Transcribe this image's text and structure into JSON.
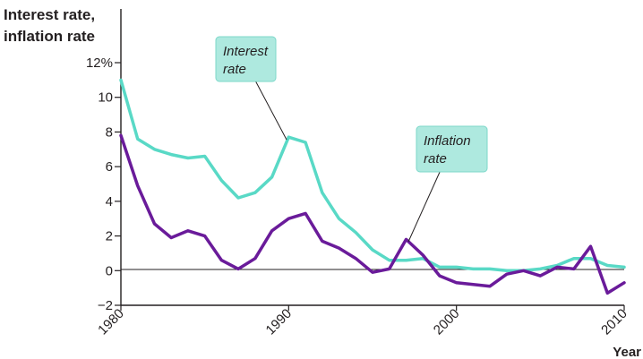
{
  "chart_data": {
    "type": "line",
    "ylabel": [
      "Interest rate,",
      "inflation rate"
    ],
    "xlabel": "Year",
    "xlim": [
      1980,
      2010
    ],
    "ylim": [
      -2,
      12
    ],
    "y_ticks": [
      -2,
      0,
      2,
      4,
      6,
      8,
      10,
      12
    ],
    "y_tick_labels": [
      "−2",
      "0",
      "2",
      "4",
      "6",
      "8",
      "10",
      "12%"
    ],
    "x_ticks": [
      1980,
      1990,
      2000,
      2010
    ],
    "x_tick_labels": [
      "1980",
      "1990",
      "2000",
      "2010"
    ],
    "grid": false,
    "series": [
      {
        "name": "Interest rate",
        "color": "#59d9c6",
        "x": [
          1980,
          1981,
          1982,
          1983,
          1984,
          1985,
          1986,
          1987,
          1988,
          1989,
          1990,
          1991,
          1992,
          1993,
          1994,
          1995,
          1996,
          1997,
          1998,
          1999,
          2000,
          2001,
          2002,
          2003,
          2004,
          2005,
          2006,
          2007,
          2008,
          2009,
          2010
        ],
        "y": [
          11.0,
          7.6,
          7.0,
          6.7,
          6.5,
          6.6,
          5.2,
          4.2,
          4.5,
          5.4,
          7.7,
          7.4,
          4.5,
          3.0,
          2.2,
          1.2,
          0.6,
          0.6,
          0.7,
          0.2,
          0.2,
          0.1,
          0.1,
          0.0,
          0.0,
          0.1,
          0.3,
          0.7,
          0.7,
          0.3,
          0.2
        ]
      },
      {
        "name": "Inflation rate",
        "color": "#6a1b9a",
        "x": [
          1980,
          1981,
          1982,
          1983,
          1984,
          1985,
          1986,
          1987,
          1988,
          1989,
          1990,
          1991,
          1992,
          1993,
          1994,
          1995,
          1996,
          1997,
          1998,
          1999,
          2000,
          2001,
          2002,
          2003,
          2004,
          2005,
          2006,
          2007,
          2008,
          2009,
          2010
        ],
        "y": [
          7.8,
          4.9,
          2.7,
          1.9,
          2.3,
          2.0,
          0.6,
          0.1,
          0.7,
          2.3,
          3.0,
          3.3,
          1.7,
          1.3,
          0.7,
          -0.1,
          0.1,
          1.8,
          0.9,
          -0.3,
          -0.7,
          -0.8,
          -0.9,
          -0.2,
          0.0,
          -0.3,
          0.2,
          0.1,
          1.4,
          -1.3,
          -0.7
        ]
      }
    ],
    "callouts": [
      {
        "series": "Interest rate",
        "lines": [
          "Interest",
          "rate"
        ]
      },
      {
        "series": "Inflation rate",
        "lines": [
          "Inflation",
          "rate"
        ]
      }
    ]
  }
}
